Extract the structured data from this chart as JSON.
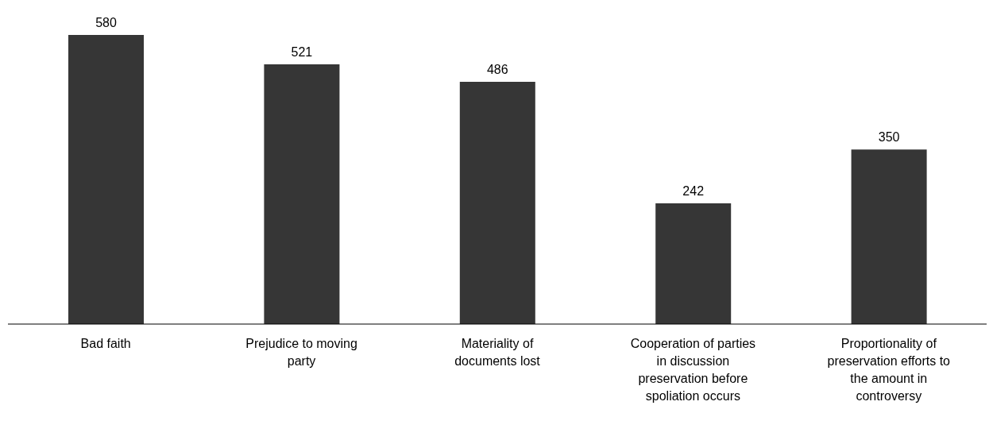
{
  "chart_data": {
    "type": "bar",
    "categories": [
      "Bad faith",
      "Prejudice to moving party",
      "Materiality of documents lost",
      "Cooperation of parties in discussion preservation before spoliation occurs",
      "Proportionality of preservation efforts to the amount in controversy"
    ],
    "values": [
      580,
      521,
      486,
      242,
      350
    ],
    "color": "#363636",
    "data_labels": true,
    "grid": false,
    "legend": false
  }
}
